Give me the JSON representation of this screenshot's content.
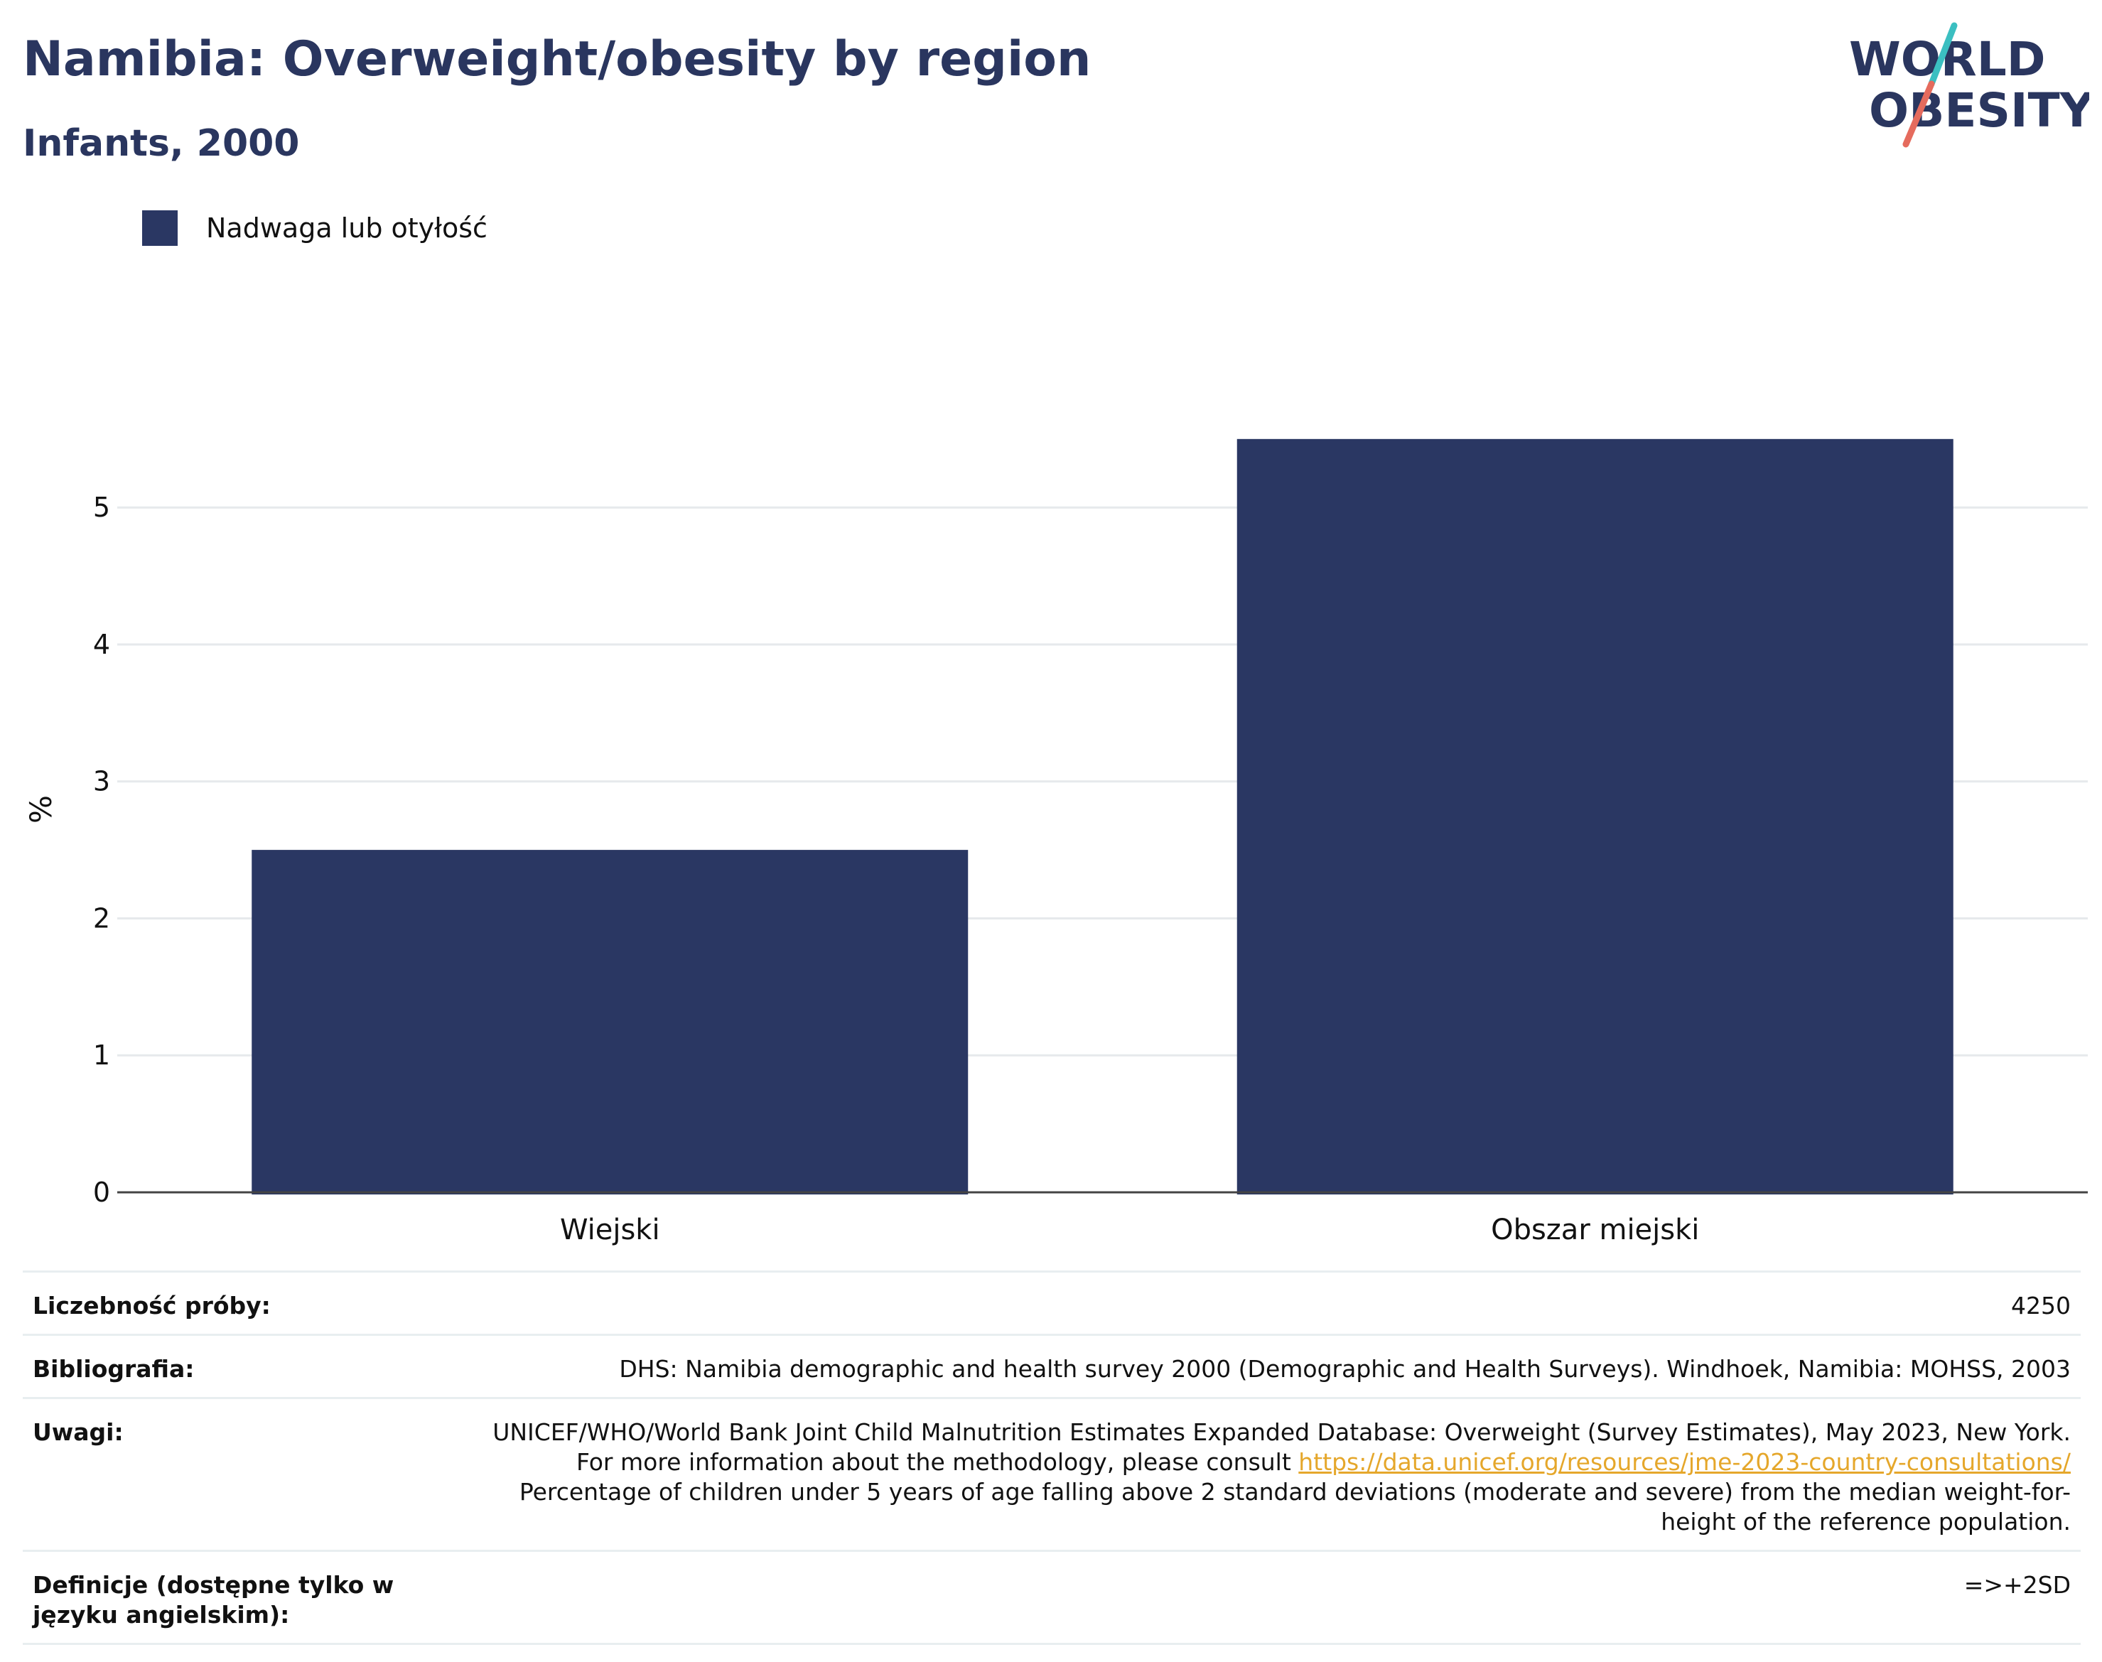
{
  "header": {
    "title": "Namibia: Overweight/obesity by region",
    "subtitle": "Infants, 2000",
    "logo_text": "WORLD OBESITY"
  },
  "legend": {
    "label": "Nadwaga lub otyłość",
    "color": "#2a3763"
  },
  "chart_data": {
    "type": "bar",
    "categories": [
      "Wiejski",
      "Obszar miejski"
    ],
    "series": [
      {
        "name": "Nadwaga lub otyłość",
        "values": [
          2.5,
          5.5
        ],
        "color": "#2a3763"
      }
    ],
    "ylabel": "%",
    "xlabel": "",
    "ylim": [
      0,
      5.8
    ],
    "yticks": [
      0,
      1,
      2,
      3,
      4,
      5
    ],
    "grid": true
  },
  "meta": {
    "sample_size_label": "Liczebność próby:",
    "sample_size_value": "4250",
    "bibliography_label": "Bibliografia:",
    "bibliography_value": "DHS: Namibia demographic and health survey 2000 (Demographic and Health Surveys). Windhoek, Namibia: MOHSS, 2003",
    "notes_label": "Uwagi:",
    "notes_text_1": "UNICEF/WHO/World Bank Joint Child Malnutrition Estimates Expanded Database: Overweight (Survey Estimates), May 2023, New York. For more information about the methodology, please consult",
    "notes_link": "https://data.unicef.org/resources/jme-2023-country-consultations/",
    "notes_text_2": "Percentage of children under 5 years of age falling above 2 standard deviations (moderate and severe) from the median weight-for-height of the reference population.",
    "definitions_label": "Definicje (dostępne tylko w języku angielskim):",
    "definitions_value": "=>+2SD"
  },
  "colors": {
    "title": "#2a365f",
    "bar": "#2a3763",
    "logo_teal": "#3bbfc1",
    "logo_coral": "#e56b5d",
    "link": "#e5a72b"
  }
}
